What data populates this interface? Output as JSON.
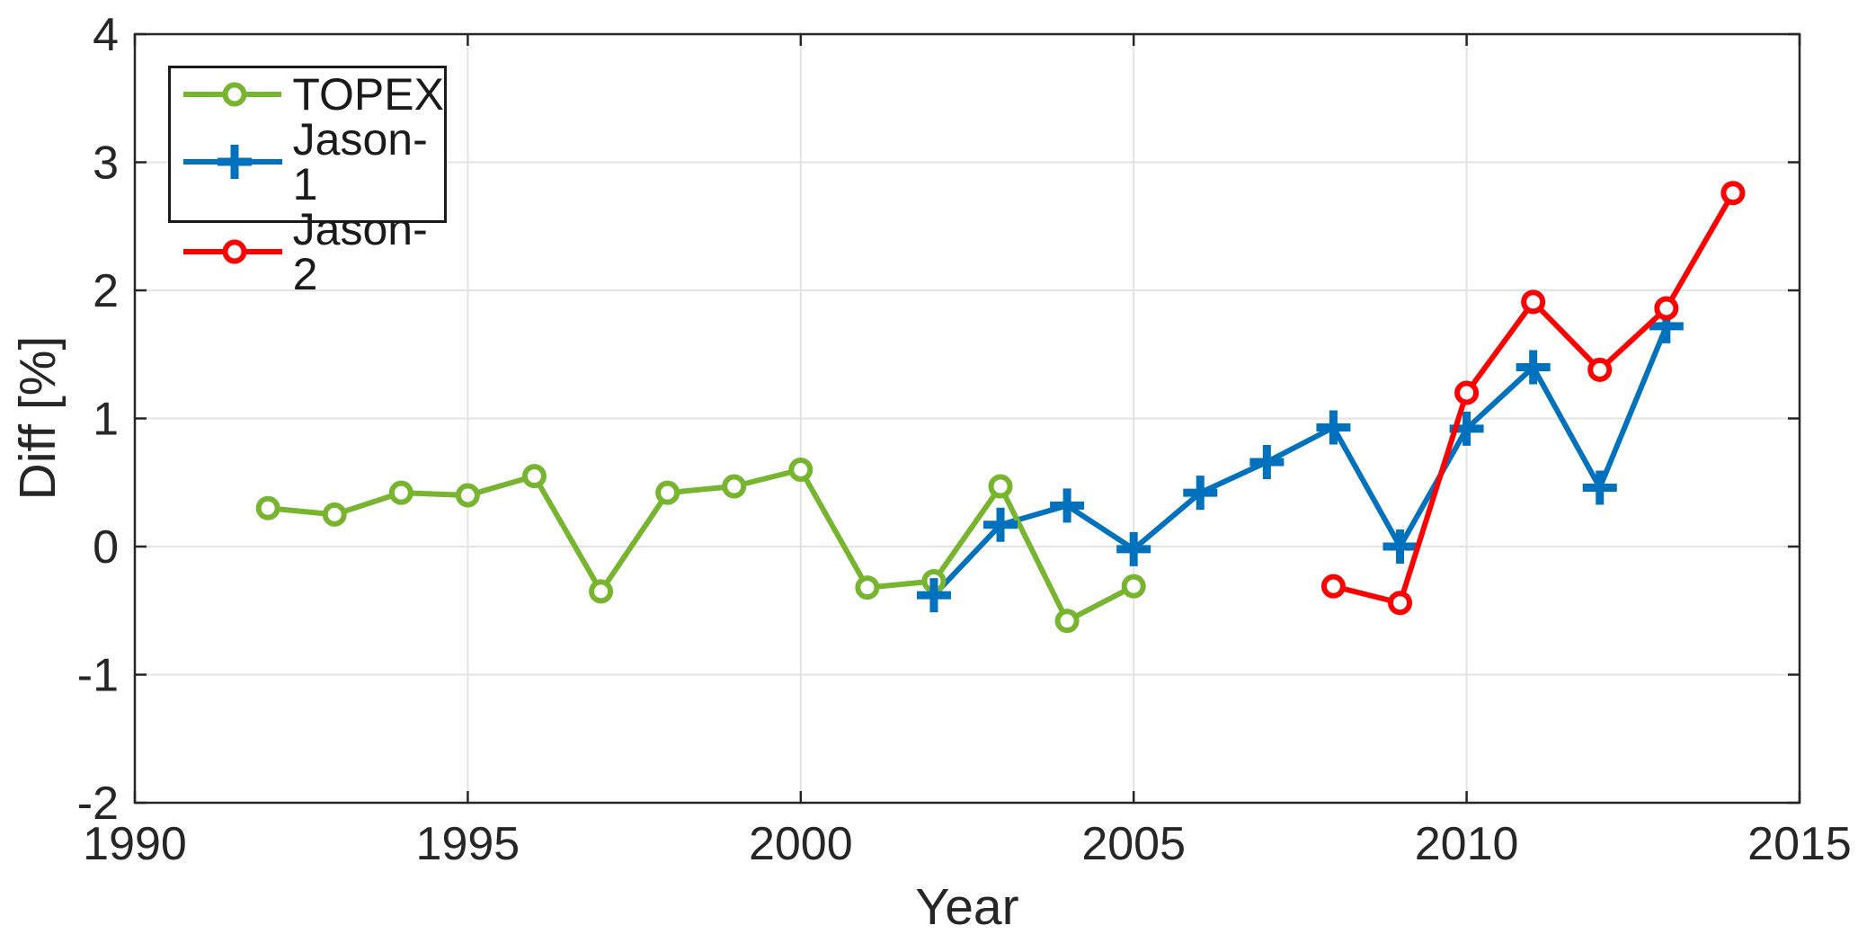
{
  "figure": {
    "background": "#ffffff"
  },
  "chart_data": {
    "type": "line",
    "title": "",
    "xlabel": "Year",
    "ylabel": "Diff [%]",
    "xlim": [
      1990,
      2015
    ],
    "ylim": [
      -2,
      4
    ],
    "xticks": [
      1990,
      1995,
      2000,
      2005,
      2010,
      2015
    ],
    "yticks": [
      -2,
      -1,
      0,
      1,
      2,
      3,
      4
    ],
    "grid": true,
    "legend_position": "top-left",
    "axis_color": "#262626",
    "grid_color": "#e3e3e3",
    "series": [
      {
        "name": "TOPEX",
        "color": "#78b52e",
        "marker": "circle",
        "x": [
          1992,
          1993,
          1994,
          1995,
          1996,
          1997,
          1998,
          1999,
          2000,
          2001,
          2002,
          2003,
          2004,
          2005
        ],
        "y": [
          0.3,
          0.25,
          0.42,
          0.4,
          0.55,
          -0.35,
          0.42,
          0.47,
          0.6,
          -0.32,
          -0.27,
          0.47,
          -0.58,
          -0.31
        ]
      },
      {
        "name": "Jason-1",
        "color": "#0072bd",
        "marker": "plus",
        "x": [
          2002,
          2003,
          2004,
          2005,
          2006,
          2007,
          2008,
          2009,
          2010,
          2011,
          2012,
          2013
        ],
        "y": [
          -0.38,
          0.17,
          0.32,
          -0.02,
          0.42,
          0.66,
          0.93,
          0.0,
          0.92,
          1.4,
          0.46,
          1.72
        ]
      },
      {
        "name": "Jason-2",
        "color": "#ff0000",
        "marker": "circle",
        "x": [
          2008,
          2009,
          2010,
          2011,
          2012,
          2013,
          2014
        ],
        "y": [
          -0.31,
          -0.44,
          1.2,
          1.91,
          1.38,
          1.86,
          2.76
        ]
      }
    ]
  }
}
